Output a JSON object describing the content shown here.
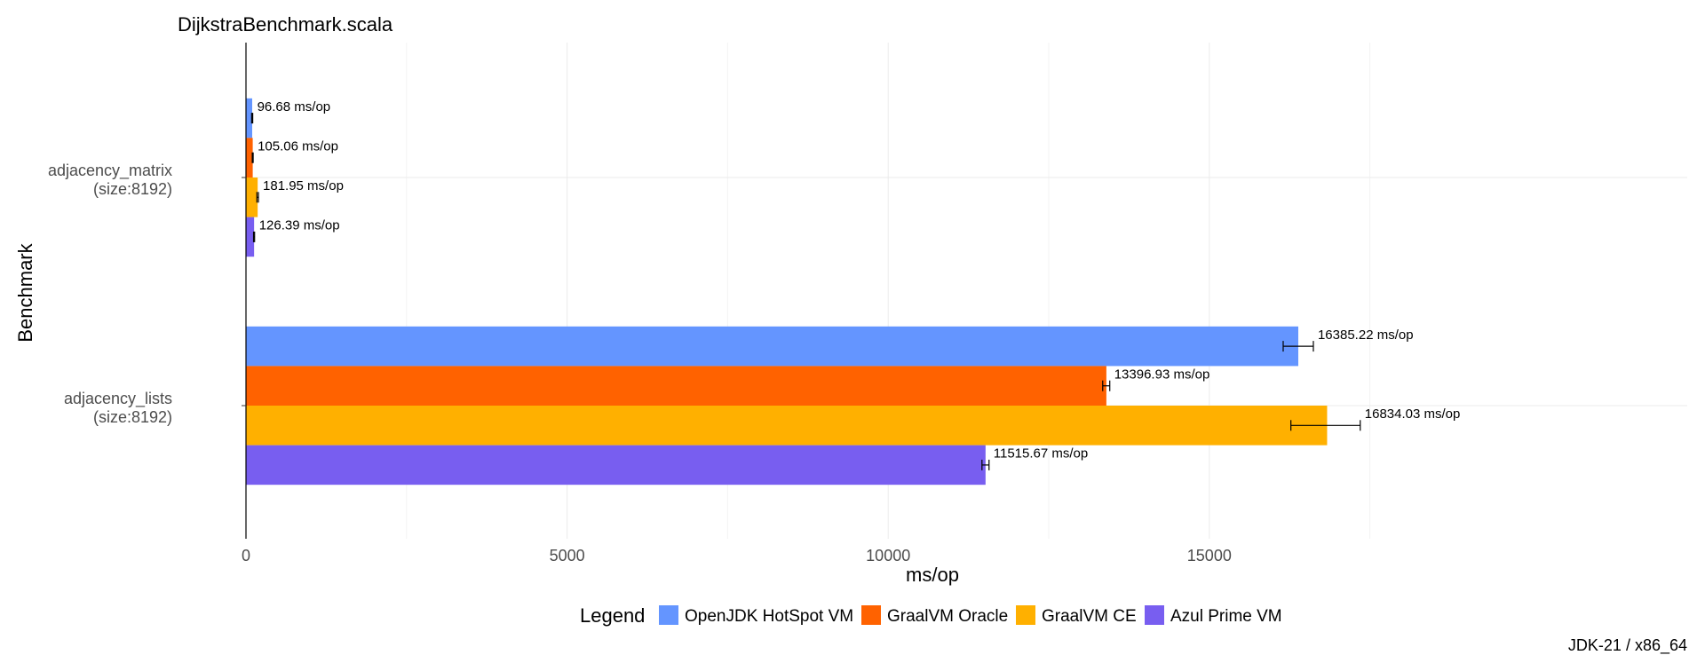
{
  "chart_data": {
    "type": "bar",
    "orientation": "horizontal",
    "title": "DijkstraBenchmark.scala",
    "xlabel": "ms/op",
    "ylabel": "Benchmark",
    "caption": "JDK-21 / x86_64",
    "xlim": [
      0,
      18000
    ],
    "x_ticks": [
      0,
      5000,
      10000,
      15000
    ],
    "grid": true,
    "legend_title": "Legend",
    "legend_position": "bottom",
    "value_suffix": " ms/op",
    "categories": [
      [
        "adjacency_matrix",
        "(size:8192)"
      ],
      [
        "adjacency_lists",
        "(size:8192)"
      ]
    ],
    "series": [
      {
        "name": "OpenJDK HotSpot VM",
        "color": "#6495FF",
        "values": [
          96.68,
          16385.22
        ],
        "labels": [
          "96.68",
          "16385.22"
        ],
        "err_low": [
          88,
          16150
        ],
        "err_high": [
          105,
          16620
        ]
      },
      {
        "name": "GraalVM Oracle",
        "color": "#FF6200",
        "values": [
          105.06,
          13396.93
        ],
        "labels": [
          "105.06",
          "13396.93"
        ],
        "err_low": [
          98,
          13340
        ],
        "err_high": [
          112,
          13450
        ]
      },
      {
        "name": "GraalVM CE",
        "color": "#FFB000",
        "values": [
          181.95,
          16834.03
        ],
        "labels": [
          "181.95",
          "16834.03"
        ],
        "err_low": [
          170,
          16270
        ],
        "err_high": [
          194,
          17350
        ]
      },
      {
        "name": "Azul Prime VM",
        "color": "#785EF0",
        "values": [
          126.39,
          11515.67
        ],
        "labels": [
          "126.39",
          "11515.67"
        ],
        "err_low": [
          118,
          11460
        ],
        "err_high": [
          134,
          11570
        ]
      }
    ]
  }
}
